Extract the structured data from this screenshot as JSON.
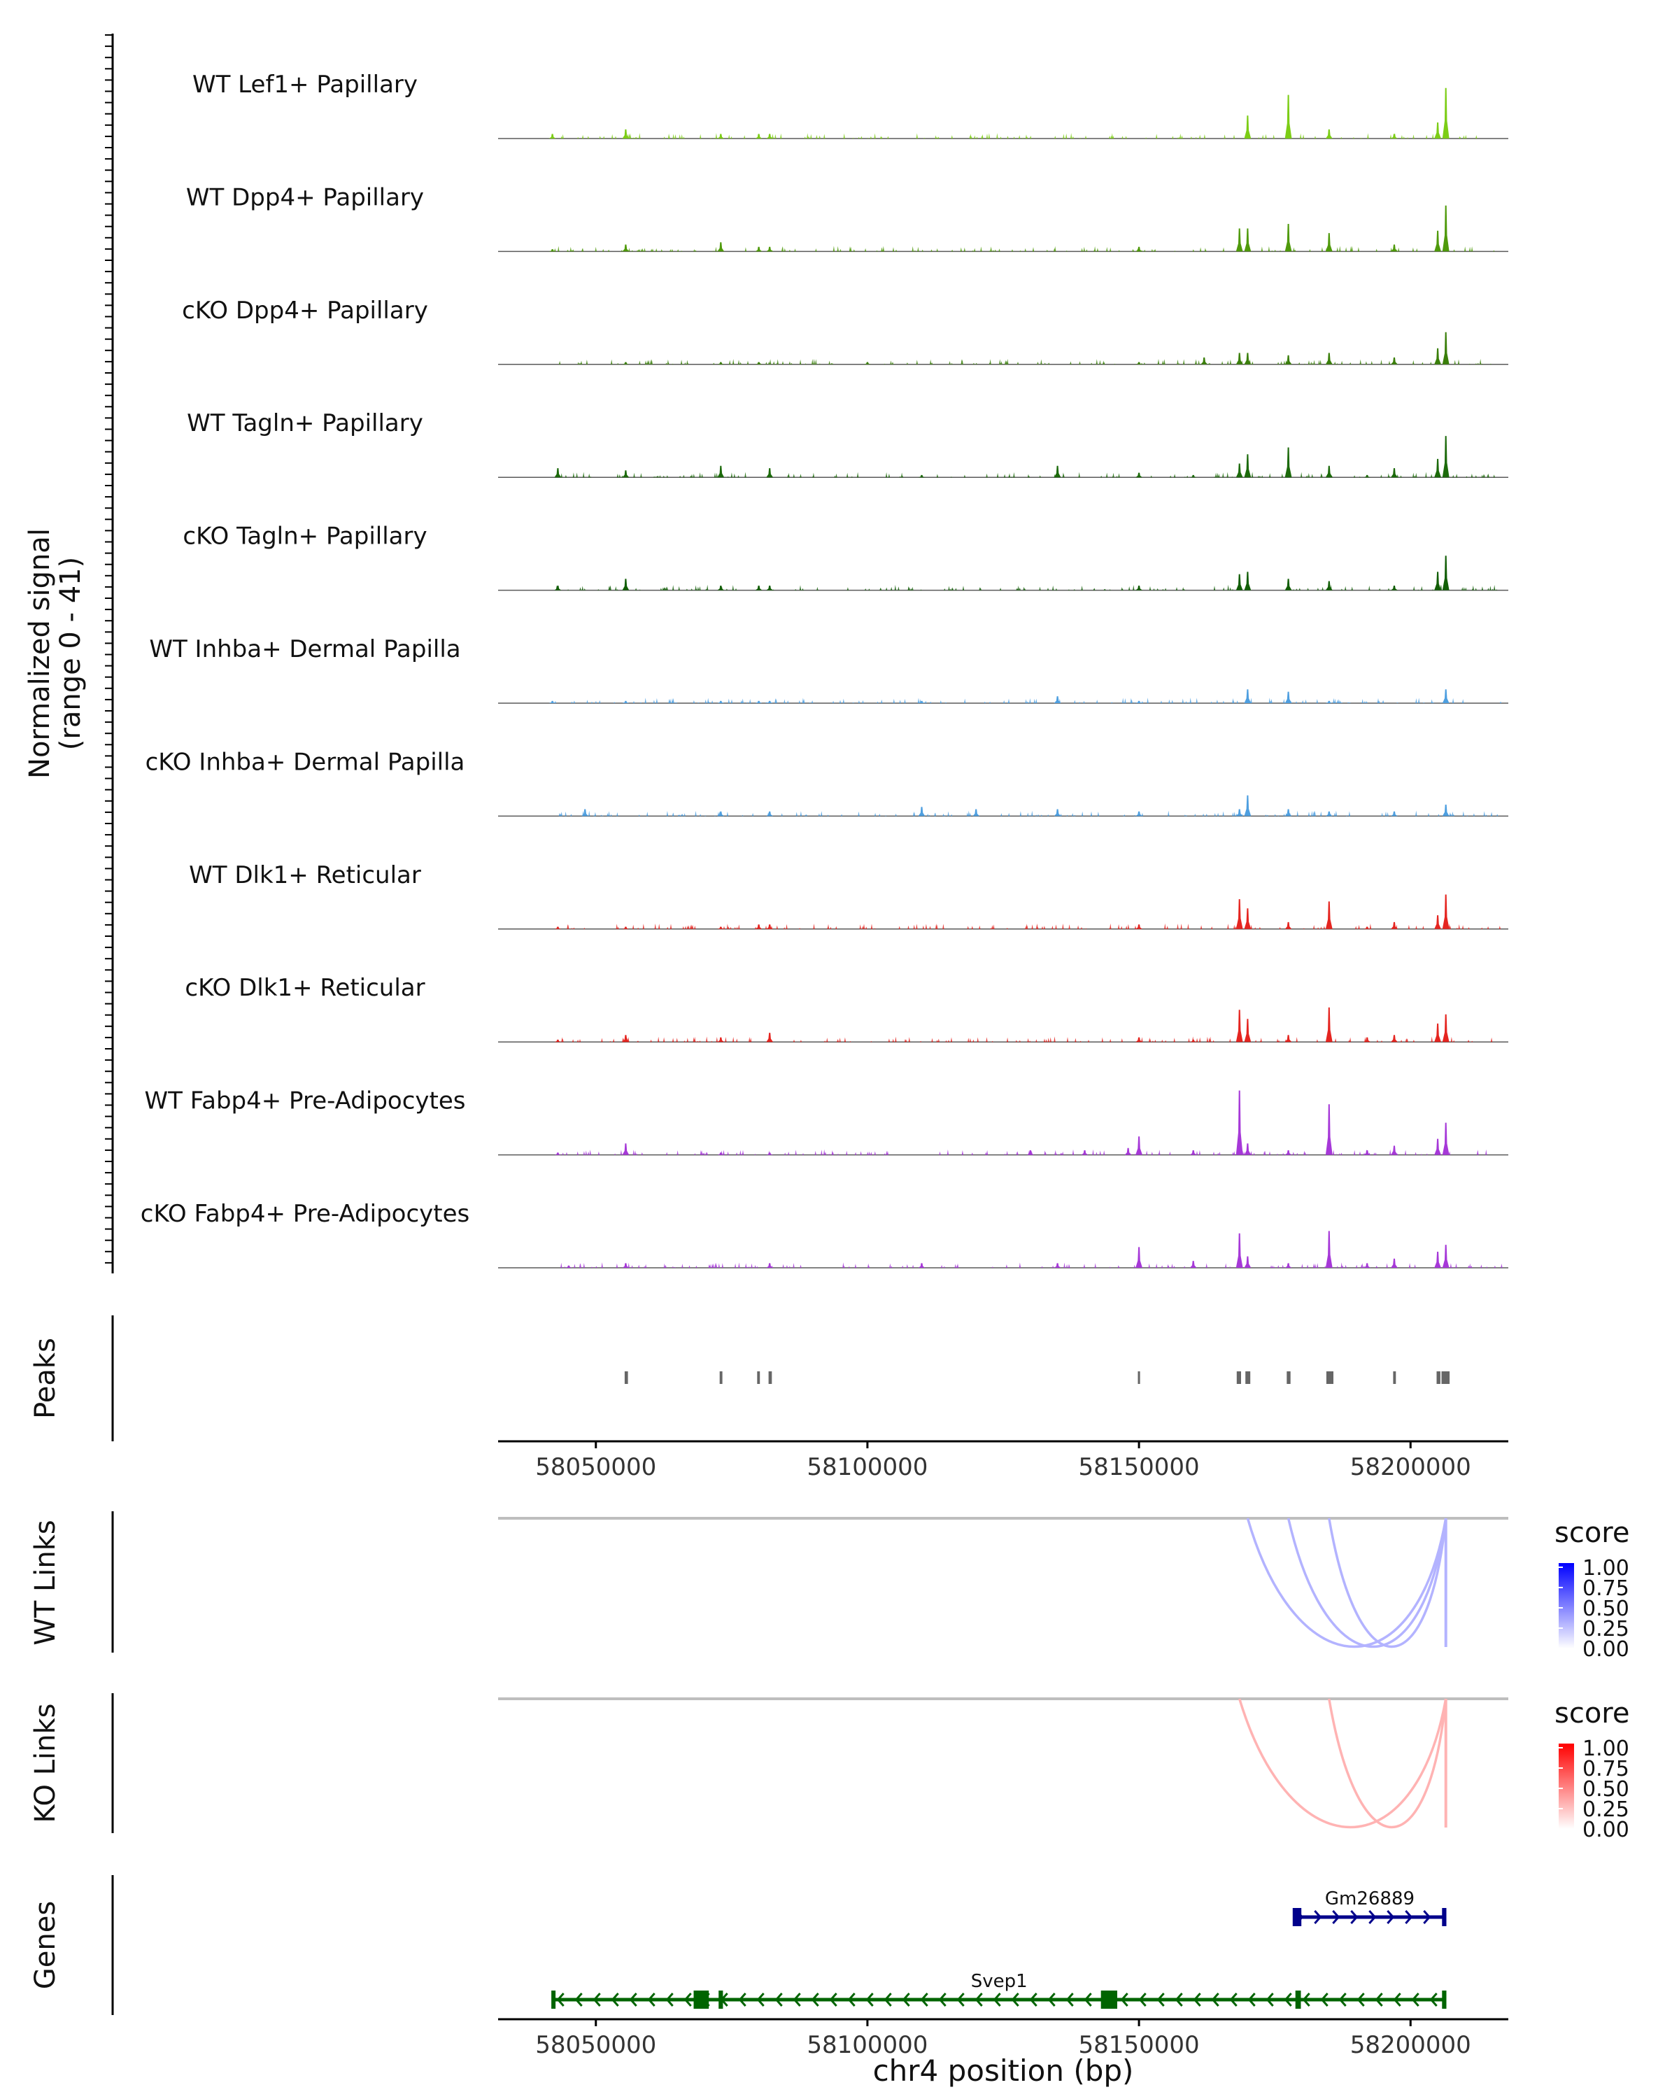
{
  "chart_data": {
    "type": "area",
    "title": "",
    "x_axis": {
      "label": "chr4 position (bp)",
      "range": [
        58032000,
        58218000
      ],
      "ticks": [
        58050000,
        58100000,
        58150000,
        58200000
      ],
      "tick_labels": [
        "58050000",
        "58100000",
        "58150000",
        "58200000"
      ]
    },
    "coverage": {
      "ylabel_line1": "Normalized signal",
      "ylabel_line2": "(range 0 - 41)",
      "ylim": [
        0,
        41
      ],
      "series": [
        {
          "name": "WT Lef1+ Papillary",
          "color": "#7CCD16",
          "peaks": [
            [
              58042000,
              2
            ],
            [
              58055500,
              4
            ],
            [
              58073000,
              2
            ],
            [
              58080000,
              2
            ],
            [
              58082000,
              2
            ],
            [
              58170000,
              10
            ],
            [
              58177500,
              19
            ],
            [
              58185000,
              4
            ],
            [
              58197000,
              2
            ],
            [
              58205000,
              7
            ],
            [
              58206500,
              22
            ]
          ]
        },
        {
          "name": "WT Dpp4+ Papillary",
          "color": "#4F9A0B",
          "peaks": [
            [
              58042000,
              1
            ],
            [
              58055500,
              3
            ],
            [
              58073000,
              4
            ],
            [
              58080000,
              2
            ],
            [
              58082000,
              2
            ],
            [
              58150000,
              2
            ],
            [
              58168500,
              10
            ],
            [
              58170000,
              10
            ],
            [
              58177500,
              12
            ],
            [
              58185000,
              8
            ],
            [
              58197000,
              3
            ],
            [
              58205000,
              9
            ],
            [
              58206500,
              20
            ]
          ]
        },
        {
          "name": "cKO Dpp4+ Papillary",
          "color": "#3A7F0A",
          "peaks": [
            [
              58055500,
              1
            ],
            [
              58073000,
              1
            ],
            [
              58080000,
              1
            ],
            [
              58100000,
              1
            ],
            [
              58150000,
              1
            ],
            [
              58162000,
              3
            ],
            [
              58168500,
              5
            ],
            [
              58170000,
              5
            ],
            [
              58177500,
              4
            ],
            [
              58185000,
              5
            ],
            [
              58197000,
              3
            ],
            [
              58205000,
              7
            ],
            [
              58206500,
              14
            ]
          ]
        },
        {
          "name": "WT Tagln+ Papillary",
          "color": "#1C6A0B",
          "peaks": [
            [
              58043000,
              4
            ],
            [
              58055500,
              3
            ],
            [
              58073000,
              5
            ],
            [
              58082000,
              4
            ],
            [
              58110000,
              1
            ],
            [
              58135000,
              5
            ],
            [
              58150000,
              2
            ],
            [
              58160000,
              1
            ],
            [
              58168500,
              6
            ],
            [
              58170000,
              10
            ],
            [
              58177500,
              13
            ],
            [
              58185000,
              5
            ],
            [
              58192000,
              1
            ],
            [
              58197000,
              4
            ],
            [
              58205000,
              8
            ],
            [
              58206500,
              18
            ]
          ]
        },
        {
          "name": "cKO Tagln+ Papillary",
          "color": "#125E07",
          "peaks": [
            [
              58043000,
              2
            ],
            [
              58055500,
              5
            ],
            [
              58073000,
              2
            ],
            [
              58080000,
              2
            ],
            [
              58082000,
              2
            ],
            [
              58150000,
              2
            ],
            [
              58168500,
              7
            ],
            [
              58170000,
              8
            ],
            [
              58177500,
              5
            ],
            [
              58185000,
              4
            ],
            [
              58197000,
              2
            ],
            [
              58205000,
              8
            ],
            [
              58206500,
              15
            ]
          ]
        },
        {
          "name": "WT Inhba+ Dermal Papilla",
          "color": "#4E9FE0",
          "peaks": [
            [
              58042000,
              1
            ],
            [
              58055500,
              1
            ],
            [
              58073000,
              1
            ],
            [
              58080000,
              1
            ],
            [
              58082000,
              1
            ],
            [
              58110000,
              1
            ],
            [
              58135000,
              3
            ],
            [
              58150000,
              1
            ],
            [
              58170000,
              6
            ],
            [
              58177500,
              5
            ],
            [
              58185000,
              1
            ],
            [
              58206500,
              6
            ]
          ]
        },
        {
          "name": "cKO Inhba+ Dermal Papilla",
          "color": "#4E9FE0",
          "peaks": [
            [
              58048000,
              3
            ],
            [
              58073000,
              2
            ],
            [
              58082000,
              2
            ],
            [
              58110000,
              4
            ],
            [
              58120000,
              3
            ],
            [
              58135000,
              3
            ],
            [
              58150000,
              2
            ],
            [
              58168500,
              3
            ],
            [
              58170000,
              9
            ],
            [
              58177500,
              3
            ],
            [
              58185000,
              2
            ],
            [
              58197000,
              2
            ],
            [
              58206500,
              5
            ]
          ]
        },
        {
          "name": "WT Dlk1+ Reticular",
          "color": "#E52520",
          "peaks": [
            [
              58043000,
              1
            ],
            [
              58055500,
              1
            ],
            [
              58073000,
              1
            ],
            [
              58080000,
              2
            ],
            [
              58082000,
              2
            ],
            [
              58150000,
              2
            ],
            [
              58168500,
              13
            ],
            [
              58170000,
              9
            ],
            [
              58177500,
              3
            ],
            [
              58185000,
              12
            ],
            [
              58192000,
              1
            ],
            [
              58197000,
              3
            ],
            [
              58205000,
              6
            ],
            [
              58206500,
              15
            ]
          ]
        },
        {
          "name": "cKO Dlk1+ Reticular",
          "color": "#E52520",
          "peaks": [
            [
              58043000,
              1
            ],
            [
              58055500,
              3
            ],
            [
              58073000,
              2
            ],
            [
              58082000,
              4
            ],
            [
              58150000,
              2
            ],
            [
              58160000,
              1
            ],
            [
              58168500,
              14
            ],
            [
              58170000,
              10
            ],
            [
              58177500,
              3
            ],
            [
              58185000,
              15
            ],
            [
              58192000,
              2
            ],
            [
              58197000,
              3
            ],
            [
              58205000,
              8
            ],
            [
              58206500,
              12
            ]
          ]
        },
        {
          "name": "WT Fabp4+ Pre-Adipocytes",
          "color": "#A638D8",
          "peaks": [
            [
              58043000,
              1
            ],
            [
              58055500,
              5
            ],
            [
              58073000,
              1
            ],
            [
              58082000,
              1
            ],
            [
              58130000,
              2
            ],
            [
              58140000,
              2
            ],
            [
              58148000,
              3
            ],
            [
              58150000,
              8
            ],
            [
              58160000,
              2
            ],
            [
              58168500,
              28
            ],
            [
              58170000,
              5
            ],
            [
              58177500,
              2
            ],
            [
              58185000,
              22
            ],
            [
              58192000,
              2
            ],
            [
              58197000,
              4
            ],
            [
              58205000,
              7
            ],
            [
              58206500,
              14
            ]
          ]
        },
        {
          "name": "cKO Fabp4+ Pre-Adipocytes",
          "color": "#A638D8",
          "peaks": [
            [
              58045000,
              1
            ],
            [
              58055500,
              2
            ],
            [
              58082000,
              2
            ],
            [
              58110000,
              2
            ],
            [
              58135000,
              2
            ],
            [
              58150000,
              9
            ],
            [
              58160000,
              3
            ],
            [
              58168500,
              15
            ],
            [
              58170000,
              5
            ],
            [
              58177500,
              2
            ],
            [
              58185000,
              16
            ],
            [
              58192000,
              2
            ],
            [
              58197000,
              4
            ],
            [
              58205000,
              7
            ],
            [
              58206500,
              10
            ]
          ]
        }
      ]
    },
    "peaks_track": {
      "label": "Peaks",
      "color": "#666666",
      "intervals": [
        [
          58055300,
          58055900
        ],
        [
          58072800,
          58073300
        ],
        [
          58079700,
          58080200
        ],
        [
          58081800,
          58082400
        ],
        [
          58149800,
          58150200
        ],
        [
          58168000,
          58168800
        ],
        [
          58169600,
          58170500
        ],
        [
          58177200,
          58177900
        ],
        [
          58184500,
          58185800
        ],
        [
          58196800,
          58197300
        ],
        [
          58204800,
          58205500
        ],
        [
          58205700,
          58207200
        ]
      ]
    },
    "wt_links": {
      "label": "WT Links",
      "legend_title": "score",
      "legend_ticks": [
        "1.00",
        "0.75",
        "0.50",
        "0.25",
        "0.00"
      ],
      "color_low": "#FFFFFF",
      "color_high": "#0000FF",
      "links": [
        {
          "start": 58170000,
          "end": 58206500,
          "score": 0.3
        },
        {
          "start": 58177500,
          "end": 58206500,
          "score": 0.3
        },
        {
          "start": 58185000,
          "end": 58206500,
          "score": 0.3
        }
      ]
    },
    "ko_links": {
      "label": "KO Links",
      "legend_title": "score",
      "legend_ticks": [
        "1.00",
        "0.75",
        "0.50",
        "0.25",
        "0.00"
      ],
      "color_low": "#FFFFFF",
      "color_high": "#FF0000",
      "links": [
        {
          "start": 58168500,
          "end": 58206500,
          "score": 0.3
        },
        {
          "start": 58185000,
          "end": 58206500,
          "score": 0.3
        }
      ]
    },
    "genes": {
      "label": "Genes",
      "items": [
        {
          "name": "Gm26889",
          "start": 58178500,
          "end": 58206500,
          "strand": "+",
          "color": "#00008B",
          "exons": [
            [
              58178300,
              58179900
            ],
            [
              58205800,
              58206600
            ]
          ]
        },
        {
          "name": "Svep1",
          "start": 58042000,
          "end": 58206500,
          "strand": "-",
          "color": "#006400",
          "exons": [
            [
              58041800,
              58042400
            ],
            [
              58068000,
              58070800
            ],
            [
              58072600,
              58073400
            ],
            [
              58143000,
              58146000
            ],
            [
              58178800,
              58179800
            ],
            [
              58205800,
              58206600
            ]
          ]
        }
      ]
    }
  }
}
